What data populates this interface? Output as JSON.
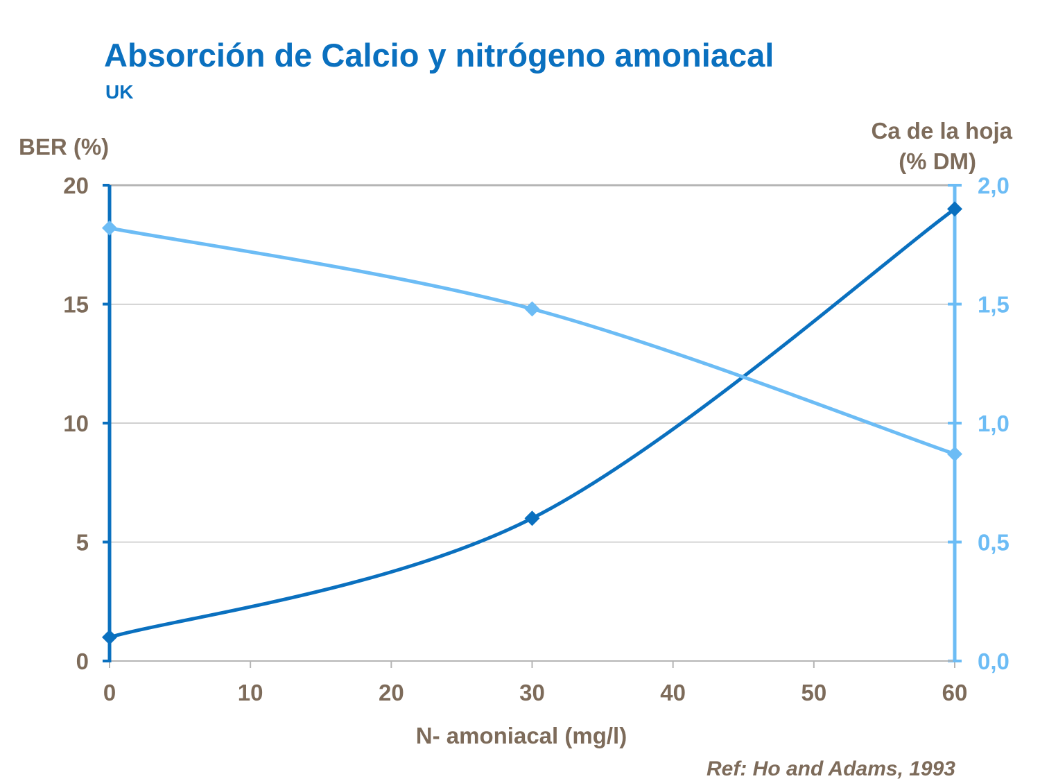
{
  "title": "Absorción de Calcio y nitrógeno amoniacal",
  "subtitle": "UK",
  "reference": "Ref: Ho and Adams, 1993",
  "colors": {
    "ber": "#0a70bf",
    "calcium": "#6cbcf5",
    "axis_text": "#7d6b5a",
    "grid": "#b5b5b5",
    "title": "#0a70bf"
  },
  "chart_data": {
    "type": "line",
    "title": "Absorción de Calcio y nitrógeno amoniacal",
    "subtitle": "UK",
    "xlabel": "N- amoniacal (mg/l)",
    "ylabel_left": "BER (%)",
    "ylabel_right_line1": "Ca de la hoja",
    "ylabel_right_line2": "(% DM)",
    "xlim": [
      0,
      60
    ],
    "ylim_left": [
      0,
      20
    ],
    "ylim_right": [
      0,
      2.0
    ],
    "x_ticks": [
      "0",
      "10",
      "20",
      "30",
      "40",
      "50",
      "60"
    ],
    "y_left_ticks": [
      "0",
      "5",
      "10",
      "15",
      "20"
    ],
    "y_right_ticks": [
      "0,0",
      "0,5",
      "1,0",
      "1,5",
      "2,0"
    ],
    "grid": true,
    "series": [
      {
        "name": "BER (%)",
        "axis": "left",
        "x": [
          0,
          30,
          60
        ],
        "values": [
          1.0,
          6.0,
          19.0
        ]
      },
      {
        "name": "Ca de la hoja (% DM)",
        "axis": "right",
        "x": [
          0,
          30,
          60
        ],
        "values": [
          1.82,
          1.48,
          0.87
        ]
      }
    ]
  }
}
